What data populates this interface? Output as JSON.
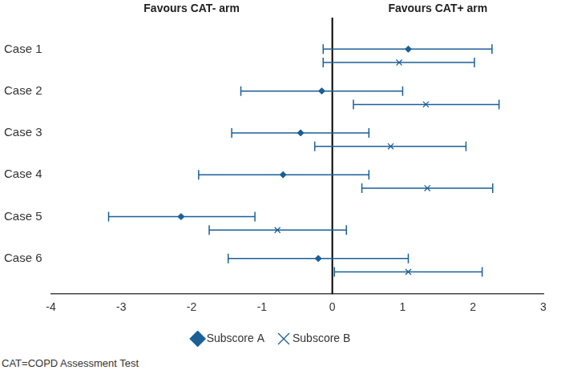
{
  "chart_data": {
    "type": "forest",
    "annotations": [
      "Favours CAT- arm",
      "Favours CAT+ arm"
    ],
    "footnote": "CAT=COPD Assessment Test",
    "categories": [
      "Case 1",
      "Case 2",
      "Case 3",
      "Case 4",
      "Case 5",
      "Case 6"
    ],
    "series": [
      {
        "name": "Subscore A",
        "color": "#1b5f97",
        "marker": "diamond",
        "values": [
          1.08,
          -0.15,
          -0.45,
          -0.7,
          -2.15,
          -0.2
        ],
        "lower": [
          -0.13,
          -1.3,
          -1.43,
          -1.9,
          -3.18,
          -1.48
        ],
        "upper": [
          2.27,
          1.0,
          0.52,
          0.52,
          -1.1,
          1.08
        ]
      },
      {
        "name": "Subscore B",
        "color": "#1b5f97",
        "marker": "x",
        "values": [
          0.95,
          1.33,
          0.83,
          1.35,
          -0.78,
          1.08
        ],
        "lower": [
          -0.13,
          0.3,
          -0.25,
          0.42,
          -1.75,
          0.03
        ],
        "upper": [
          2.02,
          2.37,
          1.9,
          2.28,
          0.2,
          2.13
        ]
      }
    ],
    "reference_line": 0,
    "xlim": [
      -4,
      3
    ],
    "xticks": [
      -4,
      -3,
      -2,
      -1,
      0,
      1,
      2,
      3
    ],
    "grid": false,
    "legend": "bottom"
  }
}
